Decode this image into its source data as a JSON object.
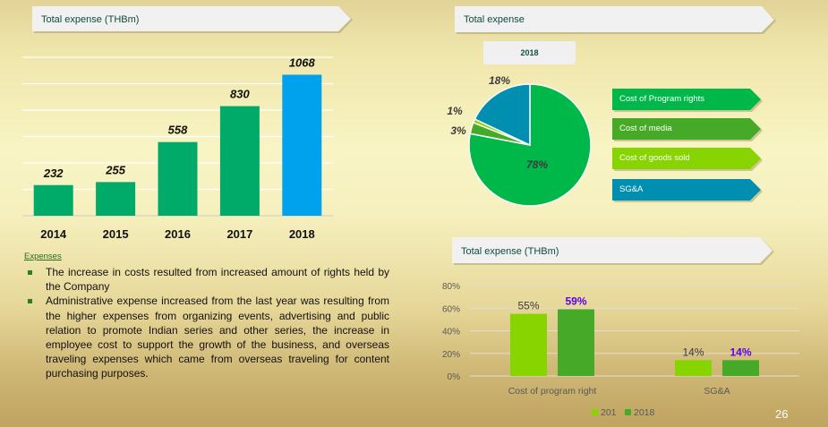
{
  "slide": {
    "page_number": "26"
  },
  "banners": {
    "left_chart_title": "Total expense (THBm)",
    "pie_title": "Total expense",
    "pie_year": "2018",
    "right_chart_title": "Total expense (THBm)"
  },
  "notes": {
    "heading": "Expenses",
    "bullets": [
      "The increase in costs resulted from increased amount of rights held by the Company",
      "Administrative expense increased from the last year was resulting from the higher expenses from organizing events, advertising and public relation to promote Indian series and other series, the increase in employee cost to support the growth of the business, and overseas traveling expenses which came from overseas traveling for content purchasing purposes."
    ]
  },
  "colors": {
    "bar_green": "#00ab6a",
    "bar_blue": "#00a2ee",
    "program_rights": "#00b84a",
    "media": "#46aa28",
    "goods_sold": "#88d400",
    "sga": "#008fb0",
    "label_blue": "#5b00e8"
  },
  "chart_data": [
    {
      "type": "bar",
      "title": "Total expense (THBm)",
      "categories": [
        "2014",
        "2015",
        "2016",
        "2017",
        "2018"
      ],
      "values": [
        232,
        255,
        558,
        830,
        1068
      ],
      "data_labels": [
        "232",
        "255",
        "558",
        "830",
        "1068"
      ],
      "highlight": "2018",
      "xlabel": "",
      "ylabel": "",
      "ylim": [
        0,
        1200
      ],
      "gridlines": [
        0,
        200,
        400,
        600,
        800,
        1000,
        1200
      ],
      "grid": true
    },
    {
      "type": "pie",
      "title": "Total expense",
      "subtitle": "2018",
      "slices": [
        {
          "label": "Cost of Program rights",
          "value": 78,
          "text": "78%"
        },
        {
          "label": "Cost of media",
          "value": 3,
          "text": "3%"
        },
        {
          "label": "Cost of goods sold",
          "value": 1,
          "text": "1%"
        },
        {
          "label": "SG&A",
          "value": 18,
          "text": "18%"
        }
      ],
      "legend": "right"
    },
    {
      "type": "bar",
      "title": "Total expense (THBm)",
      "categories": [
        "Cost of program right",
        "SG&A"
      ],
      "series": [
        {
          "name": "201",
          "values": [
            55,
            14
          ],
          "labels": [
            "55%",
            "14%"
          ]
        },
        {
          "name": "2018",
          "values": [
            59,
            14
          ],
          "labels": [
            "59%",
            "14%"
          ]
        }
      ],
      "yticks": [
        "0%",
        "20%",
        "40%",
        "60%",
        "80%"
      ],
      "ylim": [
        0,
        80
      ],
      "grid": true,
      "legend": "bottom"
    }
  ]
}
